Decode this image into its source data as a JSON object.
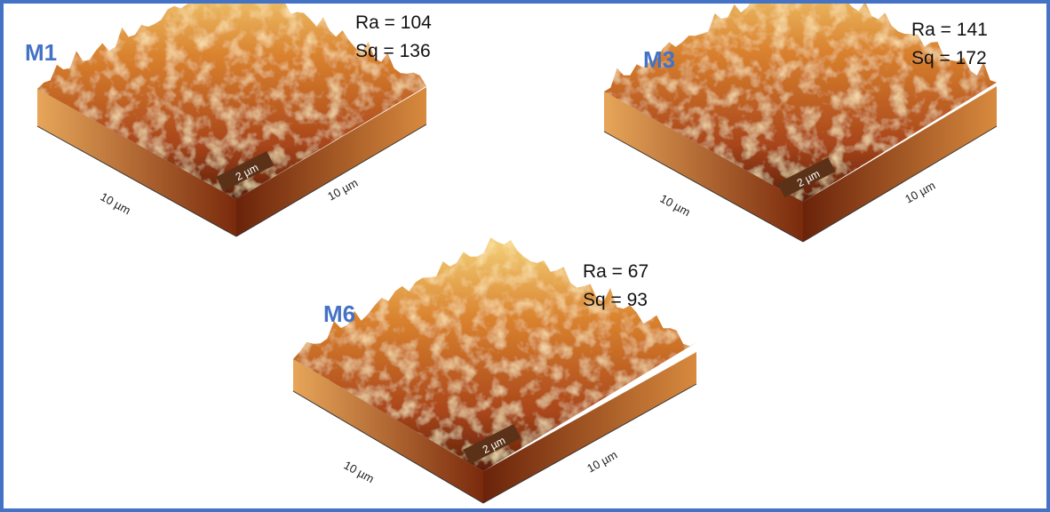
{
  "panels": [
    {
      "label": "M1",
      "ra": "Ra = 104",
      "sq": "Sq = 136",
      "scale_bar": "2 µm",
      "axis_left": "10 µm",
      "axis_right": "10 µm"
    },
    {
      "label": "M3",
      "ra": "Ra = 141",
      "sq": "Sq = 172",
      "scale_bar": "2 µm",
      "axis_left": "10 µm",
      "axis_right": "10 µm"
    },
    {
      "label": "M6",
      "ra": "Ra = 67",
      "sq": "Sq = 93",
      "scale_bar": "2 µm",
      "axis_left": "10 µm",
      "axis_right": "10 µm"
    }
  ]
}
